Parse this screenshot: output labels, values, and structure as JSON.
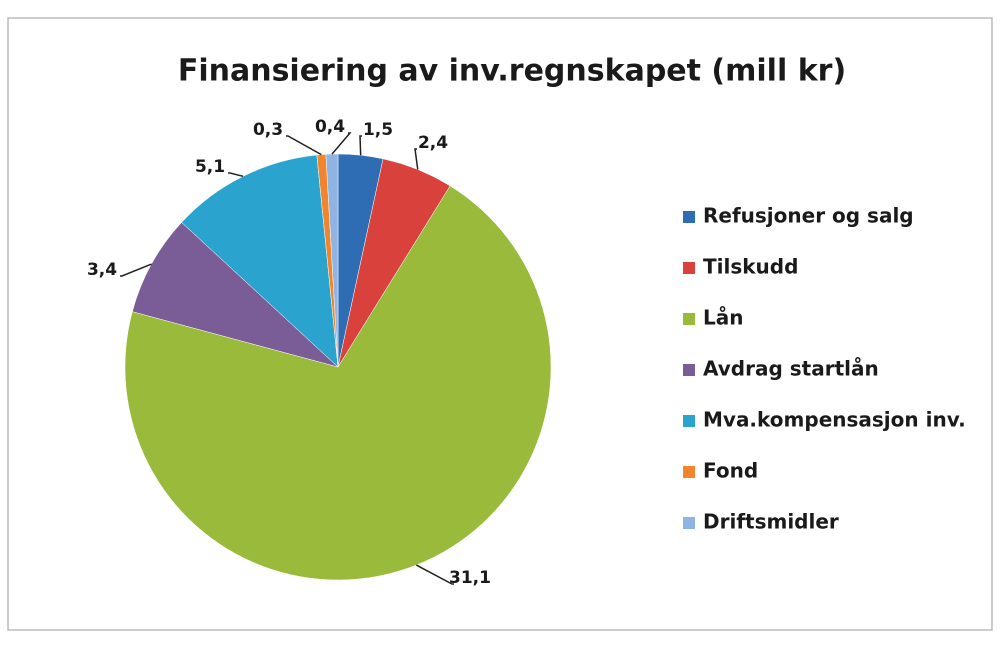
{
  "chart_data": {
    "type": "pie",
    "title": "Finansiering av inv.regnskapet (mill kr)",
    "categories": [
      "Refusjoner og salg",
      "Tilskudd",
      "Lån",
      "Avdrag startlån",
      "Mva.kompensasjon inv.",
      "Fond",
      "Driftsmidler"
    ],
    "values": [
      1.5,
      2.4,
      31.1,
      3.4,
      5.1,
      0.3,
      0.4
    ],
    "value_labels": [
      "1,5",
      "2,4",
      "31,1",
      "3,4",
      "5,1",
      "0,3",
      "0,4"
    ],
    "colors": [
      "#2e6db4",
      "#d9413c",
      "#9aba3c",
      "#7a5c96",
      "#2aa3cf",
      "#f0852d",
      "#8fb4e3"
    ],
    "legend": "right"
  }
}
